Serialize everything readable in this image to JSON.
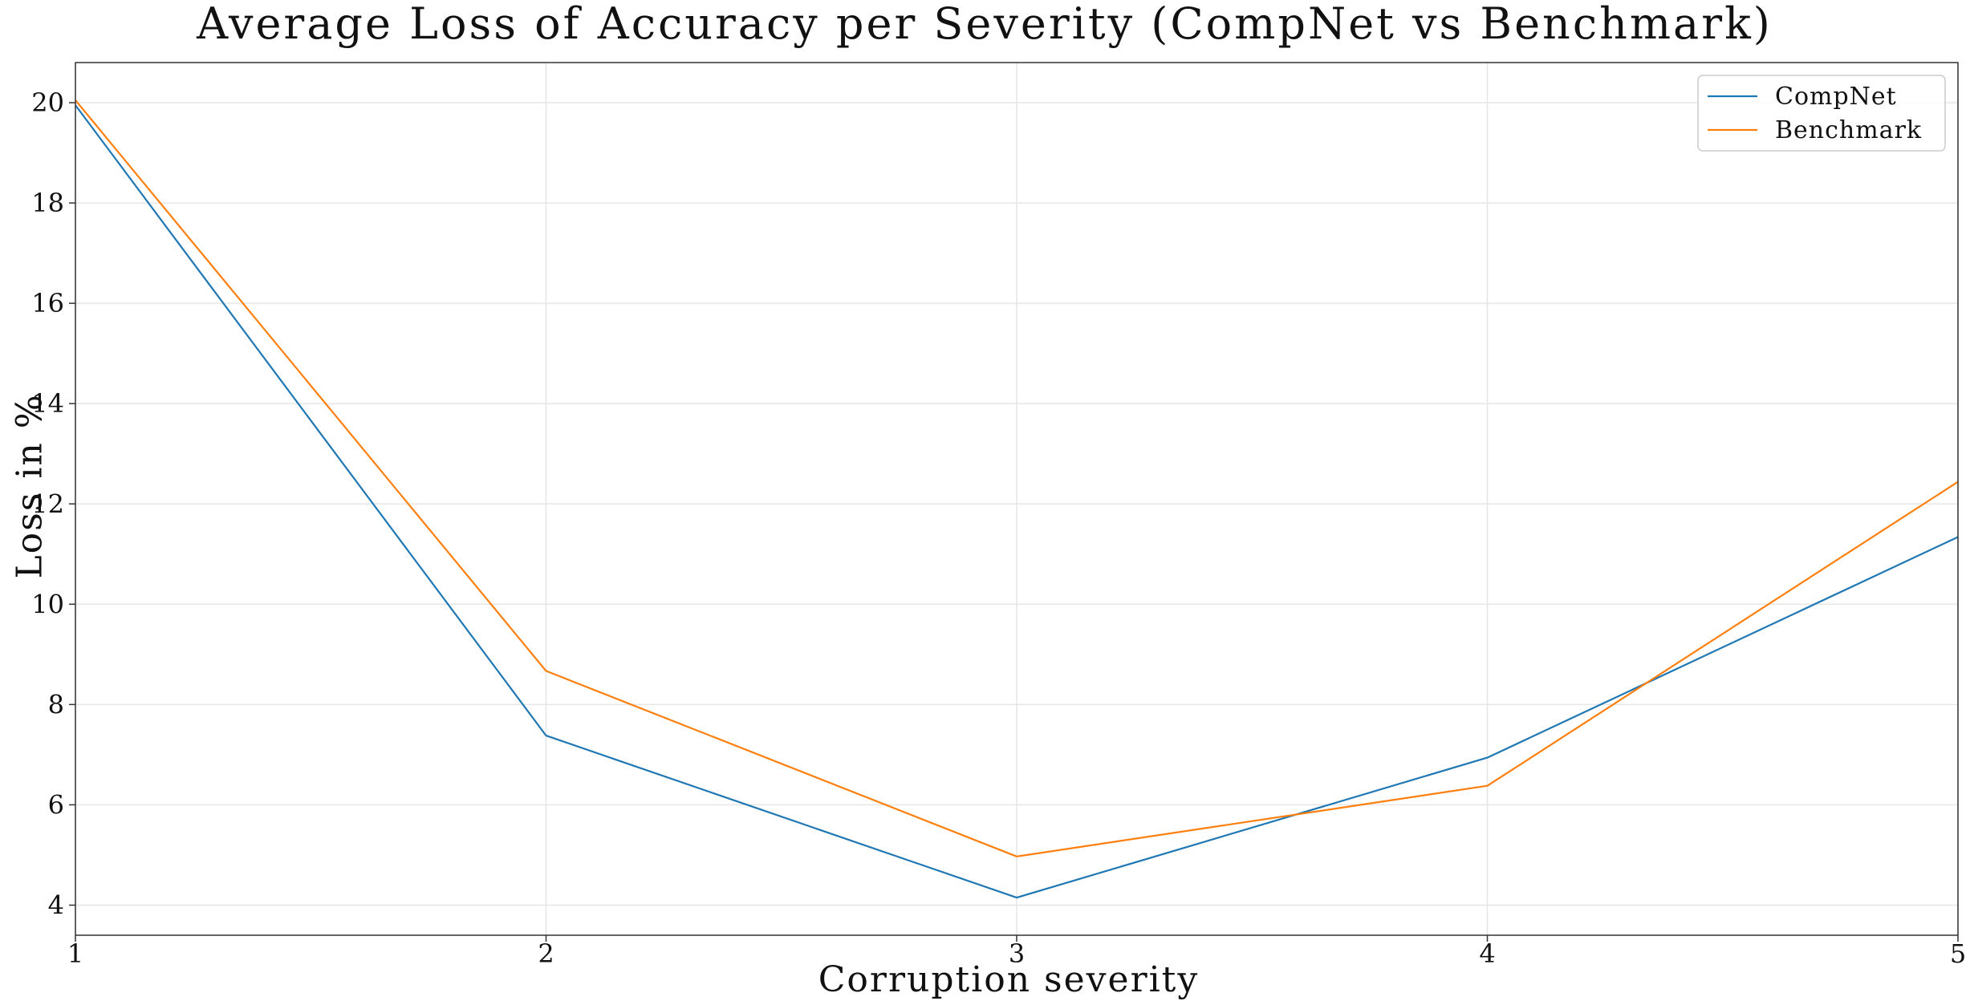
{
  "chart_data": {
    "type": "line",
    "title": "Average Loss of Accuracy per Severity (CompNet vs Benchmark)",
    "xlabel": "Corruption severity",
    "ylabel": "Loss in %",
    "x": [
      1,
      2,
      3,
      4,
      5
    ],
    "xticks": [
      "1",
      "2",
      "3",
      "4",
      "5"
    ],
    "yticks": [
      "4",
      "6",
      "8",
      "10",
      "12",
      "14",
      "16",
      "18",
      "20"
    ],
    "xlim": [
      1,
      5
    ],
    "ylim": [
      3.4,
      20.8
    ],
    "grid": true,
    "legend_position": "top-right",
    "series": [
      {
        "name": "CompNet",
        "color": "#1f77b4",
        "values": [
          19.95,
          7.38,
          4.15,
          6.94,
          11.34
        ]
      },
      {
        "name": "Benchmark",
        "color": "#ff7f0e",
        "values": [
          20.05,
          8.67,
          4.97,
          6.38,
          12.44
        ]
      }
    ]
  }
}
